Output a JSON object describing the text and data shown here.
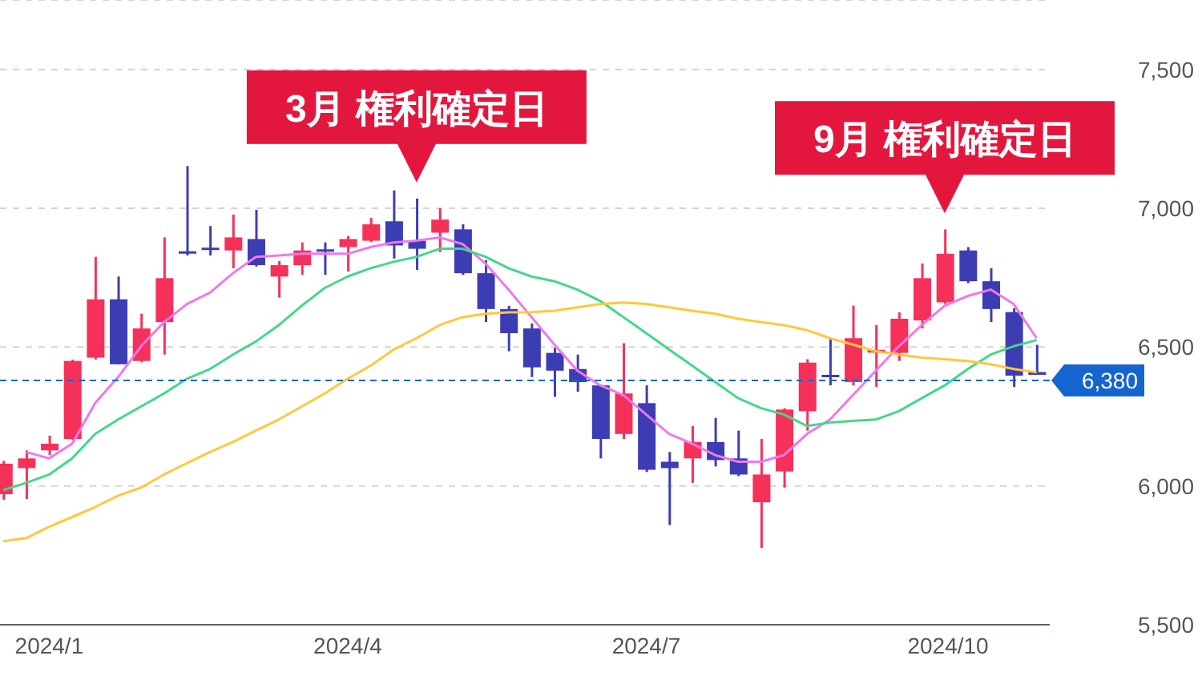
{
  "chart_data": {
    "type": "candlestick",
    "x": [
      "2023-12-18",
      "2023-12-25",
      "2024-01-01",
      "2024-01-08",
      "2024-01-15",
      "2024-01-22",
      "2024-01-29",
      "2024-02-05",
      "2024-02-12",
      "2024-02-19",
      "2024-02-26",
      "2024-03-04",
      "2024-03-11",
      "2024-03-18",
      "2024-03-25",
      "2024-04-01",
      "2024-04-08",
      "2024-04-15",
      "2024-04-22",
      "2024-04-29",
      "2024-05-06",
      "2024-05-13",
      "2024-05-20",
      "2024-05-27",
      "2024-06-03",
      "2024-06-10",
      "2024-06-17",
      "2024-06-24",
      "2024-07-01",
      "2024-07-08",
      "2024-07-15",
      "2024-07-22",
      "2024-07-29",
      "2024-08-05",
      "2024-08-12",
      "2024-08-19",
      "2024-08-26",
      "2024-09-02",
      "2024-09-09",
      "2024-09-16",
      "2024-09-23",
      "2024-09-30",
      "2024-10-07",
      "2024-10-14",
      "2024-10-21",
      "2024-10-28"
    ],
    "ohlc": [
      [
        5970,
        6090,
        5950,
        6080
      ],
      [
        6064,
        6128,
        5953,
        6099
      ],
      [
        6128,
        6181,
        6111,
        6152
      ],
      [
        6169,
        6455,
        6165,
        6450
      ],
      [
        6462,
        6825,
        6455,
        6672
      ],
      [
        6672,
        6754,
        6438,
        6438
      ],
      [
        6450,
        6620,
        6445,
        6567
      ],
      [
        6590,
        6895,
        6473,
        6748
      ],
      [
        6845,
        7152,
        6830,
        6840
      ],
      [
        6858,
        6936,
        6830,
        6850
      ],
      [
        6848,
        6977,
        6784,
        6895
      ],
      [
        6889,
        6994,
        6790,
        6795
      ],
      [
        6754,
        6810,
        6678,
        6795
      ],
      [
        6795,
        6877,
        6760,
        6848
      ],
      [
        6852,
        6877,
        6760,
        6845
      ],
      [
        6860,
        6900,
        6772,
        6889
      ],
      [
        6883,
        6965,
        6878,
        6942
      ],
      [
        6953,
        7064,
        6819,
        6866
      ],
      [
        6883,
        7035,
        6778,
        6854
      ],
      [
        6912,
        7000,
        6842,
        6959
      ],
      [
        6924,
        6942,
        6760,
        6766
      ],
      [
        6766,
        6813,
        6590,
        6637
      ],
      [
        6637,
        6648,
        6485,
        6550
      ],
      [
        6567,
        6585,
        6392,
        6427
      ],
      [
        6479,
        6497,
        6321,
        6415
      ],
      [
        6421,
        6473,
        6339,
        6374
      ],
      [
        6362,
        6365,
        6099,
        6169
      ],
      [
        6187,
        6514,
        6169,
        6333
      ],
      [
        6298,
        6362,
        6050,
        6058
      ],
      [
        6087,
        6122,
        5859,
        6064
      ],
      [
        6099,
        6216,
        6011,
        6158
      ],
      [
        6158,
        6245,
        6070,
        6093
      ],
      [
        6099,
        6199,
        6035,
        6041
      ],
      [
        5941,
        6169,
        5777,
        6041
      ],
      [
        6052,
        6280,
        5994,
        6275
      ],
      [
        6269,
        6456,
        6199,
        6444
      ],
      [
        6400,
        6532,
        6362,
        6395
      ],
      [
        6374,
        6649,
        6362,
        6532
      ],
      [
        6480,
        6579,
        6356,
        6490
      ],
      [
        6479,
        6625,
        6450,
        6602
      ],
      [
        6596,
        6801,
        6567,
        6748
      ],
      [
        6661,
        6924,
        6655,
        6836
      ],
      [
        6848,
        6860,
        6730,
        6737
      ],
      [
        6737,
        6784,
        6590,
        6637
      ],
      [
        6626,
        6640,
        6356,
        6397
      ],
      [
        6410,
        6508,
        6400,
        6400
      ]
    ],
    "colors": [
      "#f5315a",
      "#f5315a",
      "#f5315a",
      "#f5315a",
      "#f5315a",
      "#3d3db3",
      "#f5315a",
      "#f5315a",
      "#3d3db3",
      "#3d3db3",
      "#f5315a",
      "#3d3db3",
      "#f5315a",
      "#f5315a",
      "#3d3db3",
      "#f5315a",
      "#f5315a",
      "#3d3db3",
      "#3d3db3",
      "#f5315a",
      "#3d3db3",
      "#3d3db3",
      "#3d3db3",
      "#3d3db3",
      "#3d3db3",
      "#3d3db3",
      "#3d3db3",
      "#f5315a",
      "#3d3db3",
      "#3d3db3",
      "#f5315a",
      "#3d3db3",
      "#3d3db3",
      "#f5315a",
      "#f5315a",
      "#f5315a",
      "#3d3db3",
      "#f5315a",
      "#f5315a",
      "#f5315a",
      "#f5315a",
      "#f5315a",
      "#3d3db3",
      "#3d3db3",
      "#3d3db3",
      "#3d3db3"
    ],
    "series": [
      {
        "type": "line",
        "color": "#ee78ee",
        "values": [
          null,
          6122,
          6099,
          6152,
          6298,
          6392,
          6503,
          6590,
          6655,
          6696,
          6766,
          6825,
          6830,
          6836,
          6836,
          6836,
          6860,
          6877,
          6883,
          6895,
          6871,
          6801,
          6707,
          6608,
          6509,
          6415,
          6362,
          6327,
          6257,
          6187,
          6152,
          6111,
          6087,
          6087,
          6111,
          6187,
          6239,
          6327,
          6415,
          6503,
          6579,
          6649,
          6684,
          6707,
          6655,
          6532
        ]
      },
      {
        "type": "line",
        "color": "#43d886",
        "values": [
          5985,
          6011,
          6041,
          6099,
          6187,
          6239,
          6286,
          6333,
          6386,
          6421,
          6473,
          6520,
          6579,
          6649,
          6713,
          6754,
          6784,
          6807,
          6825,
          6854,
          6854,
          6825,
          6784,
          6754,
          6737,
          6707,
          6666,
          6608,
          6550,
          6491,
          6433,
          6374,
          6316,
          6280,
          6257,
          6216,
          6228,
          6234,
          6239,
          6269,
          6316,
          6362,
          6421,
          6473,
          6503,
          6525
        ]
      },
      {
        "type": "line",
        "color": "#ffc83c",
        "values": [
          5801,
          5812,
          5853,
          5888,
          5924,
          5965,
          5994,
          6041,
          6082,
          6122,
          6158,
          6199,
          6239,
          6286,
          6333,
          6386,
          6433,
          6491,
          6532,
          6579,
          6608,
          6620,
          6625,
          6626,
          6631,
          6643,
          6655,
          6660,
          6655,
          6643,
          6631,
          6620,
          6602,
          6590,
          6579,
          6561,
          6532,
          6509,
          6485,
          6473,
          6462,
          6456,
          6450,
          6438,
          6421,
          6409
        ]
      }
    ],
    "xlim": [
      "2023-12-17",
      "2024-11-01"
    ],
    "xticks": [
      {
        "value": "2024-01-01",
        "label": "2024/1"
      },
      {
        "value": "2024-04-01",
        "label": "2024/4"
      },
      {
        "value": "2024-07-01",
        "label": "2024/7"
      },
      {
        "value": "2024-10-01",
        "label": "2024/10"
      }
    ],
    "ylim": [
      5500,
      7750
    ],
    "yticks": [
      {
        "value": 5500,
        "label": "5,500"
      },
      {
        "value": 6000,
        "label": "6,000"
      },
      {
        "value": 6500,
        "label": "6,500"
      },
      {
        "value": 7000,
        "label": "7,000"
      },
      {
        "value": 7500,
        "label": "7,500"
      }
    ],
    "grid": "y",
    "ref_lines": [
      {
        "axis": "y",
        "value": 6380,
        "label": "6,380",
        "color": "#1565d0",
        "line_style": "dashed"
      }
    ],
    "annotations": [
      {
        "text": "3月 権利確定日",
        "x": "2024-04-22",
        "y": 7035
      },
      {
        "text": "9月 権利確定日",
        "x": "2024-09-30",
        "y": 6924
      }
    ]
  }
}
